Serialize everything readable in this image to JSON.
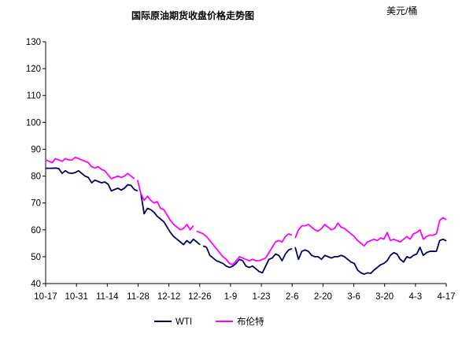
{
  "chart_data": {
    "type": "line",
    "title": "国际原油期货收盘价格走势图",
    "unit_label": "美元/桶",
    "xlabel": "",
    "ylabel": "",
    "ylim": [
      40,
      130
    ],
    "yticks": [
      40,
      50,
      60,
      70,
      80,
      90,
      100,
      110,
      120,
      130
    ],
    "xticks": [
      "10-17",
      "10-31",
      "11-14",
      "11-28",
      "12-12",
      "12-26",
      "1-9",
      "1-23",
      "2-6",
      "2-20",
      "3-6",
      "3-20",
      "4-3",
      "4-17"
    ],
    "grid": false,
    "legend_position": "bottom",
    "series": [
      {
        "name": "WTI",
        "color": "#000066",
        "values": [
          [
            0,
            82.9
          ],
          [
            1,
            82.9
          ],
          [
            2,
            82.9
          ],
          [
            3,
            83.0
          ],
          [
            4,
            82.8
          ],
          [
            5,
            81.0
          ],
          [
            6,
            82.0
          ],
          [
            7,
            81.2
          ],
          [
            8,
            81.0
          ],
          [
            9,
            81.3
          ],
          [
            10,
            82.0
          ],
          [
            11,
            81.0
          ],
          [
            12,
            80.0
          ],
          [
            13,
            79.5
          ],
          [
            14,
            77.5
          ],
          [
            15,
            78.5
          ],
          [
            16,
            78.0
          ],
          [
            17,
            77.5
          ],
          [
            18,
            77.8
          ],
          [
            19,
            77.0
          ],
          [
            20,
            74.5
          ],
          [
            21,
            75.0
          ],
          [
            22,
            75.5
          ],
          [
            23,
            74.8
          ],
          [
            24,
            75.5
          ],
          [
            25,
            76.8
          ],
          [
            26,
            76.5
          ],
          [
            27,
            75.0
          ],
          [
            28,
            74.5
          ],
          [
            29,
            73.5
          ],
          [
            30,
            66.0
          ],
          [
            31,
            68.0
          ],
          [
            32,
            67.5
          ],
          [
            33,
            66.5
          ],
          [
            34,
            65.0
          ],
          [
            35,
            64.0
          ],
          [
            36,
            63.0
          ],
          [
            37,
            61.0
          ],
          [
            38,
            59.0
          ],
          [
            39,
            57.5
          ],
          [
            40,
            56.5
          ],
          [
            41,
            55.5
          ],
          [
            42,
            54.5
          ],
          [
            43,
            56.0
          ],
          [
            44,
            55.0
          ],
          [
            45,
            56.5
          ],
          [
            46,
            55.5
          ],
          [
            47,
            54.5
          ],
          [
            48,
            54.0
          ],
          [
            49,
            53.5
          ],
          [
            50,
            50.5
          ],
          [
            51,
            49.5
          ],
          [
            52,
            48.5
          ],
          [
            53,
            48.0
          ],
          [
            54,
            47.5
          ],
          [
            55,
            46.5
          ],
          [
            56,
            46.0
          ],
          [
            57,
            46.5
          ],
          [
            58,
            47.5
          ],
          [
            59,
            49.0
          ],
          [
            60,
            48.5
          ],
          [
            61,
            46.5
          ],
          [
            62,
            46.0
          ],
          [
            63,
            46.5
          ],
          [
            64,
            45.5
          ],
          [
            65,
            44.5
          ],
          [
            66,
            44.0
          ],
          [
            67,
            46.5
          ],
          [
            68,
            49.0
          ],
          [
            69,
            49.5
          ],
          [
            70,
            51.0
          ],
          [
            71,
            50.5
          ],
          [
            72,
            48.5
          ],
          [
            73,
            51.0
          ],
          [
            74,
            52.5
          ],
          [
            75,
            53.0
          ],
          [
            76,
            53.5
          ],
          [
            77,
            49.0
          ],
          [
            78,
            52.0
          ],
          [
            79,
            52.5
          ],
          [
            80,
            52.0
          ],
          [
            81,
            50.5
          ],
          [
            82,
            50.0
          ],
          [
            83,
            50.0
          ],
          [
            84,
            49.0
          ],
          [
            85,
            50.5
          ],
          [
            86,
            50.0
          ],
          [
            87,
            49.5
          ],
          [
            88,
            50.0
          ],
          [
            89,
            50.0
          ],
          [
            90,
            50.5
          ],
          [
            91,
            50.0
          ],
          [
            92,
            49.0
          ],
          [
            93,
            48.0
          ],
          [
            94,
            47.5
          ],
          [
            95,
            45.0
          ],
          [
            96,
            44.0
          ],
          [
            97,
            43.5
          ],
          [
            98,
            44.0
          ],
          [
            99,
            43.8
          ],
          [
            100,
            45.0
          ],
          [
            101,
            46.0
          ],
          [
            102,
            47.0
          ],
          [
            103,
            47.5
          ],
          [
            104,
            48.5
          ],
          [
            105,
            50.5
          ],
          [
            106,
            51.5
          ],
          [
            107,
            51.0
          ],
          [
            108,
            49.0
          ],
          [
            109,
            48.0
          ],
          [
            110,
            50.0
          ],
          [
            111,
            49.5
          ],
          [
            112,
            50.5
          ],
          [
            113,
            51.0
          ],
          [
            114,
            53.5
          ],
          [
            115,
            50.5
          ],
          [
            116,
            51.5
          ],
          [
            117,
            52.0
          ],
          [
            118,
            52.0
          ],
          [
            119,
            52.0
          ],
          [
            120,
            56.0
          ],
          [
            121,
            56.5
          ],
          [
            122,
            55.9
          ]
        ]
      },
      {
        "name": "布伦特",
        "color": "#ff00ff",
        "values": [
          [
            0,
            86.0
          ],
          [
            1,
            85.5
          ],
          [
            2,
            85.0
          ],
          [
            3,
            86.5
          ],
          [
            4,
            86.0
          ],
          [
            5,
            85.5
          ],
          [
            6,
            86.5
          ],
          [
            7,
            86.0
          ],
          [
            8,
            86.0
          ],
          [
            9,
            87.0
          ],
          [
            10,
            86.5
          ],
          [
            11,
            86.0
          ],
          [
            12,
            85.5
          ],
          [
            13,
            85.0
          ],
          [
            14,
            83.5
          ],
          [
            15,
            83.0
          ],
          [
            16,
            83.5
          ],
          [
            17,
            82.5
          ],
          [
            18,
            82.0
          ],
          [
            19,
            80.5
          ],
          [
            20,
            79.0
          ],
          [
            21,
            79.5
          ],
          [
            22,
            80.0
          ],
          [
            23,
            79.5
          ],
          [
            24,
            80.0
          ],
          [
            25,
            81.0
          ],
          [
            26,
            80.0
          ],
          [
            27,
            79.0
          ],
          [
            28,
            78.5
          ],
          [
            29,
            73.5
          ],
          [
            30,
            71.0
          ],
          [
            31,
            72.5
          ],
          [
            32,
            71.0
          ],
          [
            33,
            70.0
          ],
          [
            34,
            70.5
          ],
          [
            35,
            68.0
          ],
          [
            36,
            67.5
          ],
          [
            37,
            65.5
          ],
          [
            38,
            63.5
          ],
          [
            39,
            62.0
          ],
          [
            40,
            61.0
          ],
          [
            41,
            60.0
          ],
          [
            42,
            60.5
          ],
          [
            43,
            62.0
          ],
          [
            44,
            60.0
          ],
          [
            45,
            61.5
          ],
          [
            46,
            59.5
          ],
          [
            47,
            59.0
          ],
          [
            48,
            58.5
          ],
          [
            49,
            57.5
          ],
          [
            50,
            56.0
          ],
          [
            51,
            54.5
          ],
          [
            52,
            53.0
          ],
          [
            53,
            51.5
          ],
          [
            54,
            50.0
          ],
          [
            55,
            49.0
          ],
          [
            56,
            47.5
          ],
          [
            57,
            47.0
          ],
          [
            58,
            48.5
          ],
          [
            59,
            50.0
          ],
          [
            60,
            49.5
          ],
          [
            61,
            49.0
          ],
          [
            62,
            48.5
          ],
          [
            63,
            49.0
          ],
          [
            64,
            48.5
          ],
          [
            65,
            48.5
          ],
          [
            66,
            49.0
          ],
          [
            67,
            49.5
          ],
          [
            68,
            51.5
          ],
          [
            69,
            53.5
          ],
          [
            70,
            55.5
          ],
          [
            71,
            56.0
          ],
          [
            72,
            55.5
          ],
          [
            73,
            57.5
          ],
          [
            74,
            58.5
          ],
          [
            75,
            58.0
          ],
          [
            76,
            57.0
          ],
          [
            77,
            60.0
          ],
          [
            78,
            61.5
          ],
          [
            79,
            61.5
          ],
          [
            80,
            62.0
          ],
          [
            81,
            61.0
          ],
          [
            82,
            60.0
          ],
          [
            83,
            59.5
          ],
          [
            84,
            60.5
          ],
          [
            85,
            62.0
          ],
          [
            86,
            61.0
          ],
          [
            87,
            60.0
          ],
          [
            88,
            60.5
          ],
          [
            89,
            62.5
          ],
          [
            90,
            61.0
          ],
          [
            91,
            60.5
          ],
          [
            92,
            59.5
          ],
          [
            93,
            58.5
          ],
          [
            94,
            57.5
          ],
          [
            95,
            56.0
          ],
          [
            96,
            55.0
          ],
          [
            97,
            54.0
          ],
          [
            98,
            55.5
          ],
          [
            99,
            56.0
          ],
          [
            100,
            56.5
          ],
          [
            101,
            56.0
          ],
          [
            102,
            57.0
          ],
          [
            103,
            56.5
          ],
          [
            104,
            59.0
          ],
          [
            105,
            56.0
          ],
          [
            106,
            56.5
          ],
          [
            107,
            56.0
          ],
          [
            108,
            55.5
          ],
          [
            109,
            56.5
          ],
          [
            110,
            57.5
          ],
          [
            111,
            56.5
          ],
          [
            112,
            58.5
          ],
          [
            113,
            59.0
          ],
          [
            114,
            60.0
          ],
          [
            115,
            56.5
          ],
          [
            116,
            57.5
          ],
          [
            117,
            58.0
          ],
          [
            118,
            58.0
          ],
          [
            119,
            58.5
          ],
          [
            120,
            63.5
          ],
          [
            121,
            64.5
          ],
          [
            122,
            63.8
          ]
        ]
      }
    ],
    "gaps": {
      "WTI": [
        29,
        48,
        76
      ],
      "布伦特": [
        28,
        46,
        76
      ]
    }
  }
}
